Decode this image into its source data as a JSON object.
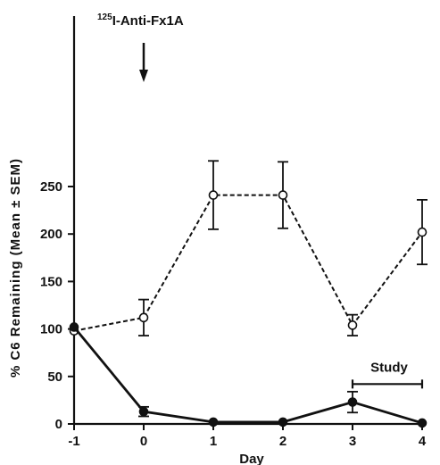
{
  "chart_data": {
    "type": "line",
    "title": "",
    "xlabel": "Day",
    "ylabel": "% C6 Remaining (Mean ± SEM)",
    "xlim": [
      -1,
      4
    ],
    "ylim": [
      0,
      275
    ],
    "x_ticks": [
      -1,
      0,
      1,
      2,
      3,
      4
    ],
    "x_tick_labels": [
      "-1",
      "0",
      "1",
      "2",
      "3",
      "4"
    ],
    "y_ticks": [
      0,
      50,
      100,
      150,
      200,
      250
    ],
    "y_tick_labels": [
      "0",
      "50",
      "100",
      "150",
      "200",
      "250"
    ],
    "grid": false,
    "legend": "none",
    "series": [
      {
        "style": "dashed",
        "marker": "open-circle",
        "color": "#111111",
        "x": [
          -1,
          0,
          1,
          2,
          3,
          4
        ],
        "y": [
          98,
          112,
          241,
          241,
          104,
          202
        ],
        "err": [
          0,
          19,
          36,
          35,
          11,
          34
        ]
      },
      {
        "style": "solid",
        "marker": "filled-circle",
        "color": "#111111",
        "x": [
          -1,
          0,
          1,
          2,
          3,
          4
        ],
        "y": [
          102,
          13,
          2,
          2,
          23,
          1
        ],
        "err": [
          0,
          5,
          0,
          0,
          11,
          0
        ]
      }
    ],
    "annotations": {
      "injection_label_mass": "125",
      "injection_label_text": "I-Anti-Fx1A",
      "injection_day": 0,
      "study_label": "Study",
      "study_range": [
        3,
        4
      ],
      "study_y": 42
    }
  }
}
